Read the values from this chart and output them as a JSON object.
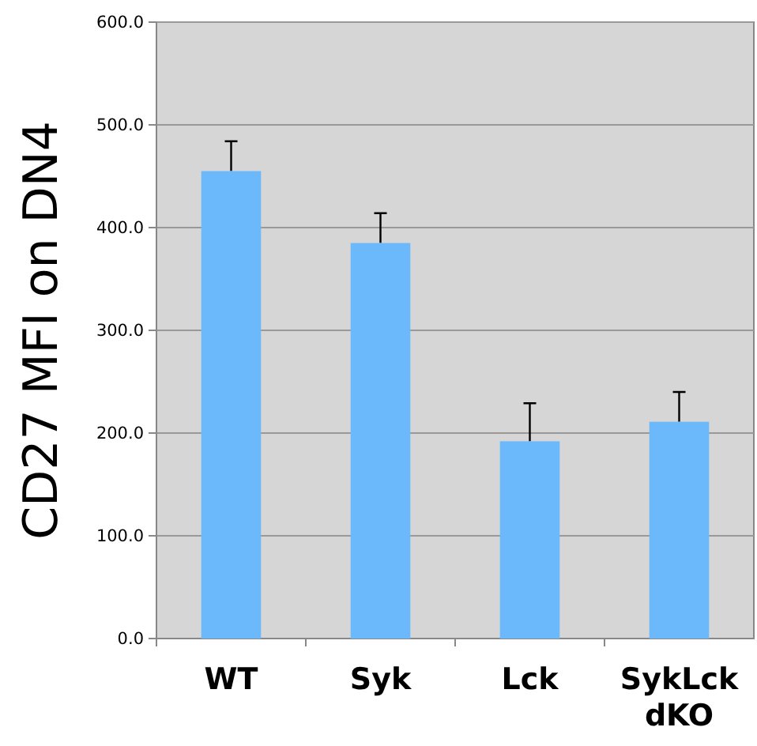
{
  "chart_data": {
    "type": "bar",
    "ylabel": "CD27 MFI on DN4",
    "categories": [
      "WT",
      "Syk",
      "Lck",
      "SykLck dKO"
    ],
    "values": [
      455,
      385,
      192,
      211
    ],
    "errors": [
      [
        455,
        484
      ],
      [
        385,
        414
      ],
      [
        192,
        229
      ],
      [
        211,
        240
      ]
    ],
    "color": "#6bb9fb",
    "ylim": [
      0,
      600
    ],
    "yticks": [
      {
        "value": 0,
        "label": "0.0"
      },
      {
        "value": 100,
        "label": "100.0"
      },
      {
        "value": 200,
        "label": "200.0"
      },
      {
        "value": 300,
        "label": "300.0"
      },
      {
        "value": 400,
        "label": "400.0"
      },
      {
        "value": 500,
        "label": "500.0"
      },
      {
        "value": 600,
        "label": "600.0"
      }
    ],
    "grid": "y"
  }
}
